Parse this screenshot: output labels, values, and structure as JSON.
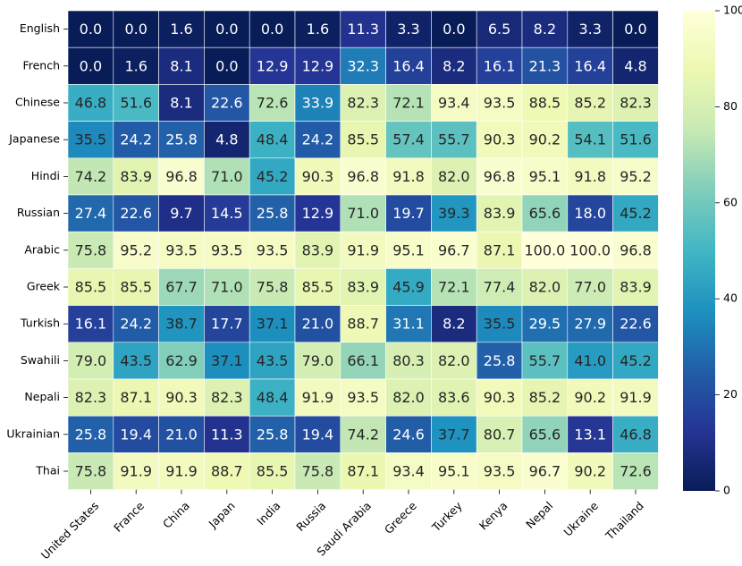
{
  "chart_data": {
    "type": "heatmap",
    "title": "",
    "xlabel": "",
    "ylabel": "",
    "rows": [
      "English",
      "French",
      "Chinese",
      "Japanese",
      "Hindi",
      "Russian",
      "Arabic",
      "Greek",
      "Turkish",
      "Swahili",
      "Nepali",
      "Ukrainian",
      "Thai"
    ],
    "columns": [
      "United States",
      "France",
      "China",
      "Japan",
      "India",
      "Russia",
      "Saudi Arabia",
      "Greece",
      "Turkey",
      "Kenya",
      "Nepal",
      "Ukraine",
      "Thailand"
    ],
    "values": [
      [
        0.0,
        0.0,
        1.6,
        0.0,
        0.0,
        1.6,
        11.3,
        3.3,
        0.0,
        6.5,
        8.2,
        3.3,
        0.0
      ],
      [
        0.0,
        1.6,
        8.1,
        0.0,
        12.9,
        12.9,
        32.3,
        16.4,
        8.2,
        16.1,
        21.3,
        16.4,
        4.8
      ],
      [
        46.8,
        51.6,
        8.1,
        22.6,
        72.6,
        33.9,
        82.3,
        72.1,
        93.4,
        93.5,
        88.5,
        85.2,
        82.3
      ],
      [
        35.5,
        24.2,
        25.8,
        4.8,
        48.4,
        24.2,
        85.5,
        57.4,
        55.7,
        90.3,
        90.2,
        54.1,
        51.6
      ],
      [
        74.2,
        83.9,
        96.8,
        71.0,
        45.2,
        90.3,
        96.8,
        91.8,
        82.0,
        96.8,
        95.1,
        91.8,
        95.2
      ],
      [
        27.4,
        22.6,
        9.7,
        14.5,
        25.8,
        12.9,
        71.0,
        19.7,
        39.3,
        83.9,
        65.6,
        18.0,
        45.2
      ],
      [
        75.8,
        95.2,
        93.5,
        93.5,
        93.5,
        83.9,
        91.9,
        95.1,
        96.7,
        87.1,
        100.0,
        100.0,
        96.8
      ],
      [
        85.5,
        85.5,
        67.7,
        71.0,
        75.8,
        85.5,
        83.9,
        45.9,
        72.1,
        77.4,
        82.0,
        77.0,
        83.9
      ],
      [
        16.1,
        24.2,
        38.7,
        17.7,
        37.1,
        21.0,
        88.7,
        31.1,
        8.2,
        35.5,
        29.5,
        27.9,
        22.6
      ],
      [
        79.0,
        43.5,
        62.9,
        37.1,
        43.5,
        79.0,
        66.1,
        80.3,
        82.0,
        25.8,
        55.7,
        41.0,
        45.2
      ],
      [
        82.3,
        87.1,
        90.3,
        82.3,
        48.4,
        91.9,
        93.5,
        82.0,
        83.6,
        90.3,
        85.2,
        90.2,
        91.9
      ],
      [
        25.8,
        19.4,
        21.0,
        11.3,
        25.8,
        19.4,
        74.2,
        24.6,
        37.7,
        80.7,
        65.6,
        13.1,
        46.8
      ],
      [
        75.8,
        91.9,
        91.9,
        88.7,
        85.5,
        75.8,
        87.1,
        93.4,
        95.1,
        93.5,
        96.7,
        90.2,
        72.6
      ]
    ],
    "vmin": 0,
    "vmax": 100,
    "colormap": "YlGnBu",
    "colorbar_ticks": [
      0,
      20,
      40,
      60,
      80,
      100
    ],
    "value_format": "1 decimal"
  }
}
